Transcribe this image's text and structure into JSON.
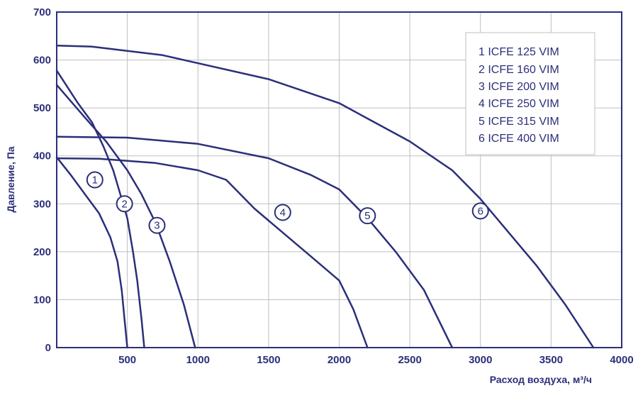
{
  "chart_data": {
    "type": "line",
    "xlabel": "Расход воздуха, м³/ч",
    "ylabel": "Давление, Па",
    "xlim": [
      0,
      4000
    ],
    "ylim": [
      0,
      700
    ],
    "x_ticks": [
      "500",
      "1000",
      "1500",
      "2000",
      "2500",
      "3000",
      "3500",
      "4000"
    ],
    "y_ticks": [
      "0",
      "100",
      "200",
      "300",
      "400",
      "500",
      "600",
      "700"
    ],
    "grid": true,
    "legend_position": "top-right",
    "legend": [
      "1  ICFE 125 VIM",
      "2  ICFE 160 VIM",
      "3  ICFE 200 VIM",
      "4  ICFE 250 VIM",
      "5  ICFE 315 VIM",
      "6  ICFE 400 VIM"
    ],
    "colors": {
      "ink": "#2b2f7a",
      "grid": "#bfbfbf"
    },
    "series": [
      {
        "name": "1",
        "x": [
          0,
          100,
          200,
          300,
          380,
          430,
          460,
          480,
          500
        ],
        "y": [
          397,
          360,
          320,
          280,
          230,
          180,
          120,
          60,
          0
        ],
        "label_at": [
          270,
          350
        ]
      },
      {
        "name": "2",
        "x": [
          0,
          150,
          250,
          330,
          400,
          450,
          500,
          540,
          570,
          600,
          620
        ],
        "y": [
          578,
          510,
          470,
          420,
          370,
          320,
          270,
          200,
          140,
          60,
          0
        ],
        "label_at": [
          480,
          300
        ]
      },
      {
        "name": "3",
        "x": [
          0,
          200,
          350,
          500,
          600,
          700,
          800,
          900,
          980
        ],
        "y": [
          548,
          480,
          430,
          370,
          320,
          260,
          180,
          90,
          0
        ],
        "label_at": [
          710,
          255
        ]
      },
      {
        "name": "4",
        "x": [
          0,
          300,
          700,
          1000,
          1200,
          1400,
          1600,
          1800,
          2000,
          2100,
          2200
        ],
        "y": [
          395,
          394,
          385,
          370,
          350,
          290,
          240,
          190,
          140,
          80,
          0
        ],
        "label_at": [
          1600,
          282
        ]
      },
      {
        "name": "5",
        "x": [
          0,
          500,
          1000,
          1500,
          1800,
          2000,
          2200,
          2400,
          2600,
          2800
        ],
        "y": [
          440,
          438,
          425,
          395,
          360,
          330,
          270,
          200,
          120,
          0
        ],
        "label_at": [
          2200,
          275
        ]
      },
      {
        "name": "6",
        "x": [
          0,
          250,
          750,
          1500,
          2000,
          2500,
          2800,
          3000,
          3200,
          3400,
          3600,
          3800
        ],
        "y": [
          630,
          628,
          610,
          560,
          510,
          430,
          370,
          310,
          240,
          170,
          90,
          0
        ],
        "label_at": [
          3000,
          285
        ]
      }
    ]
  }
}
